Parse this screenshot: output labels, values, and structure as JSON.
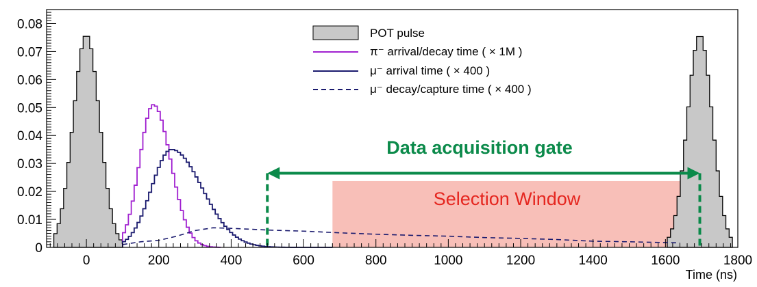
{
  "chart_data": {
    "type": "line",
    "title": "",
    "xlabel": "Time (ns)",
    "ylabel": "",
    "xlim": [
      -110,
      1800
    ],
    "ylim": [
      0,
      0.085
    ],
    "x_ticks": [
      0,
      200,
      400,
      600,
      800,
      1000,
      1200,
      1400,
      1600,
      1800
    ],
    "y_ticks": [
      0,
      0.01,
      0.02,
      0.03,
      0.04,
      0.05,
      0.06,
      0.07,
      0.08
    ],
    "y_tick_labels": [
      "0",
      "0.01",
      "0.02",
      "0.03",
      "0.04",
      "0.05",
      "0.06",
      "0.07",
      "0.08"
    ],
    "grid": false,
    "legend_position": "top-center",
    "series": [
      {
        "name": "POT pulse",
        "style": "filled-histogram",
        "color": "#c8c8c8",
        "pulses": [
          {
            "center": 0,
            "peak": 0.076,
            "x_start": -90,
            "x_end": 100
          },
          {
            "center": 1695,
            "peak": 0.076,
            "x_start": 1605,
            "x_end": 1785
          }
        ]
      },
      {
        "name": "π⁻ arrival/decay time ( × 1M )",
        "style": "histogram",
        "color": "#a020d0",
        "peak_x": 185,
        "peak": 0.051,
        "x_start": 100,
        "x_end": 370
      },
      {
        "name": "μ⁻ arrival time ( × 400 )",
        "style": "histogram",
        "color": "#1a1a6e",
        "peak_x": 235,
        "peak": 0.035,
        "x_start": 100,
        "x_end": 680
      },
      {
        "name": "μ⁻ decay/capture time ( × 400 )",
        "style": "dashed",
        "color": "#1a1a6e",
        "points": [
          [
            100,
            0.001
          ],
          [
            150,
            0.002
          ],
          [
            200,
            0.0025
          ],
          [
            250,
            0.004
          ],
          [
            300,
            0.006
          ],
          [
            350,
            0.007
          ],
          [
            400,
            0.0068
          ],
          [
            500,
            0.0062
          ],
          [
            600,
            0.0058
          ],
          [
            700,
            0.0052
          ],
          [
            800,
            0.0047
          ],
          [
            900,
            0.0043
          ],
          [
            1000,
            0.004
          ],
          [
            1100,
            0.0035
          ],
          [
            1200,
            0.0032
          ],
          [
            1300,
            0.0028
          ],
          [
            1400,
            0.0022
          ],
          [
            1500,
            0.002
          ],
          [
            1600,
            0.0017
          ],
          [
            1640,
            0.0016
          ]
        ]
      }
    ],
    "annotations": {
      "gate": {
        "label": "Data acquisition gate",
        "x_start": 500,
        "x_end": 1695,
        "arrow_y": 0.0265,
        "color": "#0b8a4a"
      },
      "window": {
        "label": "Selection Window",
        "x_start": 680,
        "x_end": 1680,
        "y_top": 0.0237,
        "color": "#f5a9a0"
      }
    }
  },
  "colors": {
    "pot_fill": "#c8c8c8",
    "pion": "#a020d0",
    "muon": "#1a1a6e",
    "gate": "#0b8a4a",
    "window_fill": "#f5a9a0",
    "window_text": "#e5261f"
  }
}
